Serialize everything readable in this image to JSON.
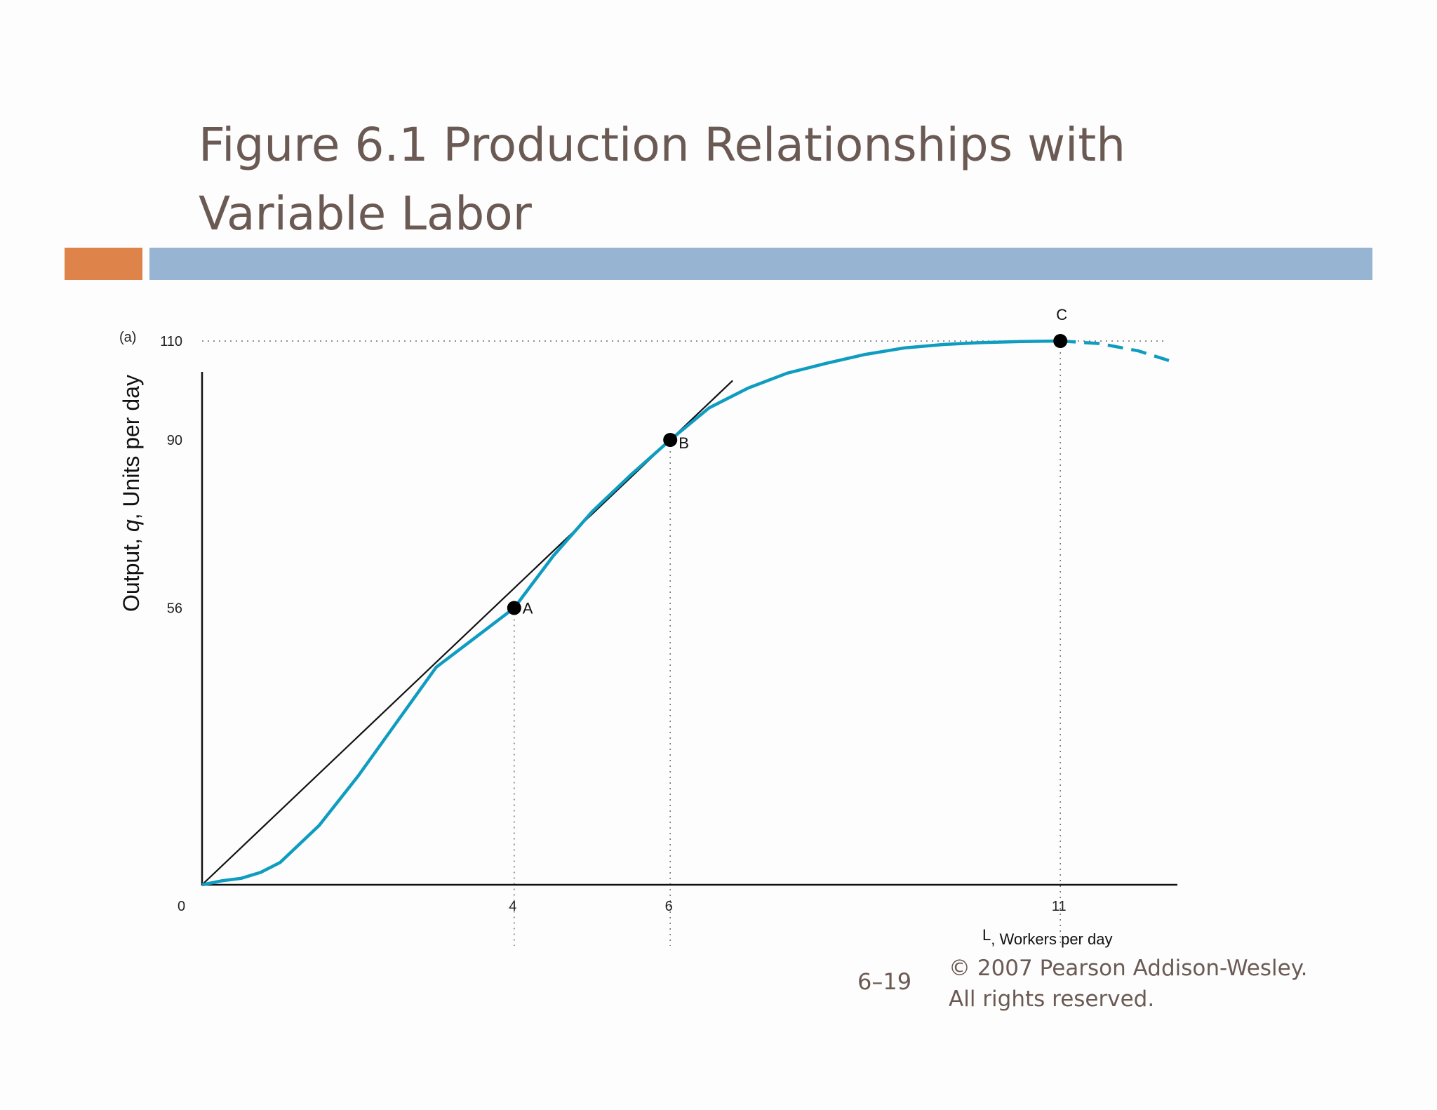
{
  "slide": {
    "title_line1": "Figure 6.1 Production Relationships with",
    "title_line2": "Variable Labor",
    "slide_number": "6–19",
    "copyright_line1": "© 2007 Pearson Addison-Wesley.",
    "copyright_line2": "All rights reserved."
  },
  "colors": {
    "title_text": "#6b5a54",
    "accent_bar": "#de834a",
    "title_bar": "#97b5d2",
    "curve": "#0e9cc0",
    "tangent": "#111111"
  },
  "chart_data": {
    "type": "line",
    "panel_label": "(a)",
    "title": "",
    "xlabel_symbol": "L",
    "xlabel": ", Workers per day",
    "ylabel_prefix": "Output, ",
    "ylabel_italic": "q",
    "ylabel_suffix": ", Units per day",
    "origin_label": "0",
    "xlim": [
      0,
      12.4
    ],
    "ylim": [
      0,
      115
    ],
    "x_ticks": [
      4,
      6,
      11
    ],
    "y_ticks": [
      56,
      90,
      110
    ],
    "grid": false,
    "series": [
      {
        "style": "solid",
        "x": [
          0,
          0.25,
          0.5,
          0.75,
          1,
          1.5,
          2,
          2.5,
          3,
          3.5,
          4,
          4.5,
          5,
          5.5,
          6,
          6.5,
          7,
          7.5,
          8,
          8.5,
          9,
          9.5,
          10,
          10.5,
          11
        ],
        "y": [
          0,
          0.8,
          1.3,
          2.5,
          4.5,
          12,
          22,
          33,
          44,
          50,
          56,
          66.5,
          75.5,
          83,
          90,
          96.5,
          100.5,
          103.5,
          105.5,
          107.3,
          108.6,
          109.3,
          109.7,
          109.9,
          110
        ]
      },
      {
        "style": "dashed",
        "x": [
          11,
          11.5,
          12,
          12.4
        ],
        "y": [
          110,
          109.5,
          108,
          106
        ]
      }
    ],
    "tangent_line": {
      "x": [
        0,
        6.8
      ],
      "y": [
        0,
        102
      ]
    },
    "points": [
      {
        "label": "A",
        "x": 4,
        "y": 56
      },
      {
        "label": "B",
        "x": 6,
        "y": 90
      },
      {
        "label": "C",
        "x": 11,
        "y": 110
      }
    ],
    "reference_lines": [
      {
        "orientation": "vertical",
        "x": 4,
        "from_y": 56
      },
      {
        "orientation": "vertical",
        "x": 6,
        "from_y": 90
      },
      {
        "orientation": "vertical",
        "x": 11,
        "from_y": 110
      },
      {
        "orientation": "horizontal",
        "y": 110
      }
    ]
  }
}
